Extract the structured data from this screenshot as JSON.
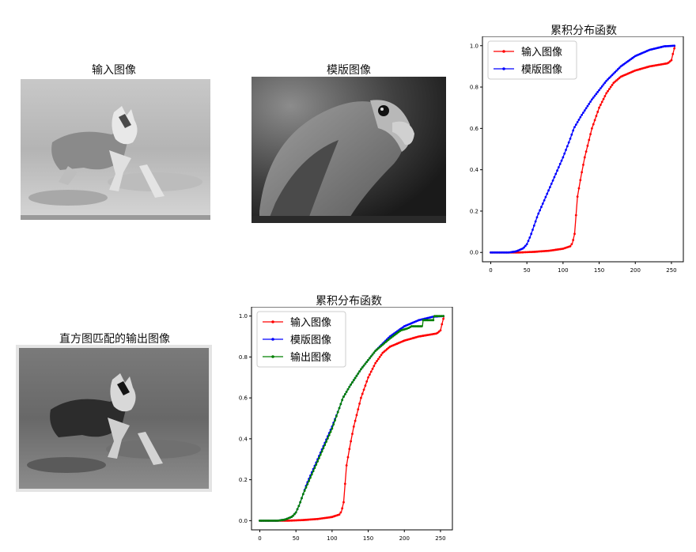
{
  "panels": {
    "input_image_title": "输入图像",
    "template_image_title": "模版图像",
    "output_image_title": "直方图匹配的输出图像"
  },
  "chart_data": [
    {
      "type": "line",
      "title": "累积分布函数",
      "xlim": [
        0,
        255
      ],
      "ylim": [
        0,
        1.0
      ],
      "xticks": [
        0,
        50,
        100,
        150,
        200,
        250
      ],
      "yticks": [
        0.0,
        0.2,
        0.4,
        0.6,
        0.8,
        1.0
      ],
      "legend_position": "top-left",
      "series": [
        {
          "name": "输入图像",
          "color": "#ff0000",
          "points": [
            [
              0,
              0
            ],
            [
              40,
              0
            ],
            [
              60,
              0.003
            ],
            [
              80,
              0.008
            ],
            [
              100,
              0.018
            ],
            [
              110,
              0.03
            ],
            [
              113,
              0.045
            ],
            [
              116,
              0.09
            ],
            [
              118,
              0.18
            ],
            [
              120,
              0.27
            ],
            [
              125,
              0.37
            ],
            [
              130,
              0.46
            ],
            [
              140,
              0.6
            ],
            [
              150,
              0.7
            ],
            [
              160,
              0.77
            ],
            [
              170,
              0.82
            ],
            [
              180,
              0.85
            ],
            [
              200,
              0.88
            ],
            [
              220,
              0.9
            ],
            [
              245,
              0.915
            ],
            [
              250,
              0.93
            ],
            [
              252,
              0.96
            ],
            [
              255,
              1.0
            ]
          ]
        },
        {
          "name": "模版图像",
          "color": "#0000ff",
          "points": [
            [
              0,
              0
            ],
            [
              25,
              0
            ],
            [
              35,
              0.005
            ],
            [
              45,
              0.02
            ],
            [
              50,
              0.04
            ],
            [
              55,
              0.08
            ],
            [
              60,
              0.13
            ],
            [
              65,
              0.18
            ],
            [
              70,
              0.22
            ],
            [
              80,
              0.3
            ],
            [
              90,
              0.38
            ],
            [
              100,
              0.46
            ],
            [
              110,
              0.55
            ],
            [
              115,
              0.6
            ],
            [
              125,
              0.66
            ],
            [
              140,
              0.74
            ],
            [
              160,
              0.83
            ],
            [
              180,
              0.9
            ],
            [
              200,
              0.95
            ],
            [
              220,
              0.98
            ],
            [
              240,
              0.997
            ],
            [
              255,
              1.0
            ]
          ]
        }
      ]
    },
    {
      "type": "line",
      "title": "累积分布函数",
      "xlim": [
        0,
        255
      ],
      "ylim": [
        0,
        1.0
      ],
      "xticks": [
        0,
        50,
        100,
        150,
        200,
        250
      ],
      "yticks": [
        0.0,
        0.2,
        0.4,
        0.6,
        0.8,
        1.0
      ],
      "legend_position": "top-left",
      "series": [
        {
          "name": "输入图像",
          "color": "#ff0000",
          "points": [
            [
              0,
              0
            ],
            [
              40,
              0
            ],
            [
              60,
              0.003
            ],
            [
              80,
              0.008
            ],
            [
              100,
              0.018
            ],
            [
              110,
              0.03
            ],
            [
              113,
              0.045
            ],
            [
              116,
              0.09
            ],
            [
              118,
              0.18
            ],
            [
              120,
              0.27
            ],
            [
              125,
              0.37
            ],
            [
              130,
              0.46
            ],
            [
              140,
              0.6
            ],
            [
              150,
              0.7
            ],
            [
              160,
              0.77
            ],
            [
              170,
              0.82
            ],
            [
              180,
              0.85
            ],
            [
              200,
              0.88
            ],
            [
              220,
              0.9
            ],
            [
              245,
              0.915
            ],
            [
              250,
              0.93
            ],
            [
              252,
              0.96
            ],
            [
              255,
              1.0
            ]
          ]
        },
        {
          "name": "模版图像",
          "color": "#0000ff",
          "points": [
            [
              0,
              0
            ],
            [
              25,
              0
            ],
            [
              35,
              0.005
            ],
            [
              45,
              0.02
            ],
            [
              50,
              0.04
            ],
            [
              55,
              0.08
            ],
            [
              60,
              0.13
            ],
            [
              65,
              0.18
            ],
            [
              70,
              0.22
            ],
            [
              80,
              0.3
            ],
            [
              90,
              0.38
            ],
            [
              100,
              0.46
            ],
            [
              110,
              0.55
            ],
            [
              115,
              0.6
            ],
            [
              125,
              0.66
            ],
            [
              140,
              0.74
            ],
            [
              160,
              0.83
            ],
            [
              180,
              0.9
            ],
            [
              200,
              0.95
            ],
            [
              220,
              0.98
            ],
            [
              240,
              0.997
            ],
            [
              255,
              1.0
            ]
          ]
        },
        {
          "name": "输出图像",
          "color": "#008000",
          "points": [
            [
              0,
              0
            ],
            [
              25,
              0
            ],
            [
              35,
              0.005
            ],
            [
              45,
              0.02
            ],
            [
              50,
              0.04
            ],
            [
              55,
              0.08
            ],
            [
              60,
              0.13
            ],
            [
              65,
              0.17
            ],
            [
              70,
              0.21
            ],
            [
              80,
              0.29
            ],
            [
              90,
              0.37
            ],
            [
              100,
              0.45
            ],
            [
              110,
              0.55
            ],
            [
              115,
              0.6
            ],
            [
              125,
              0.66
            ],
            [
              140,
              0.74
            ],
            [
              160,
              0.83
            ],
            [
              180,
              0.89
            ],
            [
              195,
              0.93
            ],
            [
              205,
              0.94
            ],
            [
              210,
              0.95
            ],
            [
              225,
              0.95
            ],
            [
              226,
              0.98
            ],
            [
              240,
              0.98
            ],
            [
              241,
              1.0
            ],
            [
              255,
              1.0
            ]
          ]
        }
      ]
    }
  ]
}
